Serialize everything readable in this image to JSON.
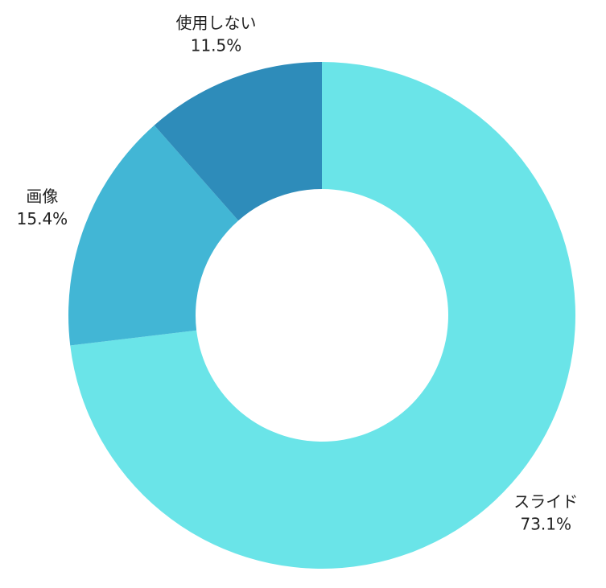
{
  "chart_data": {
    "type": "pie",
    "categories": [
      "スライド",
      "画像",
      "使用しない"
    ],
    "values": [
      73.1,
      15.4,
      11.5
    ],
    "value_labels": [
      "73.1%",
      "15.4%",
      "11.5%"
    ],
    "colors": [
      "#6ae4e8",
      "#42b6d5",
      "#2e8cba"
    ]
  }
}
